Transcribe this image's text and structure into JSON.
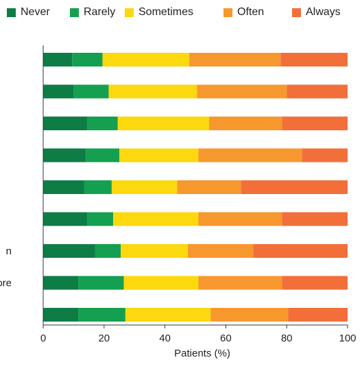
{
  "chart_data": {
    "type": "bar",
    "orientation": "horizontal",
    "stacked": true,
    "title": "",
    "xlabel": "Patients (%)",
    "ylabel": "",
    "xlim": [
      0,
      100
    ],
    "xticks": [
      "0",
      "20",
      "40",
      "60",
      "80",
      "100"
    ],
    "grid": false,
    "legend_position": "top",
    "categories": [
      "",
      "",
      "",
      "",
      "",
      "",
      "n",
      "ore",
      ""
    ],
    "series": [
      {
        "name": "Never",
        "color": "#0e7d45",
        "values": [
          9.5,
          10,
          14.5,
          14,
          13.5,
          14.5,
          17,
          11.5,
          11.5
        ]
      },
      {
        "name": "Rarely",
        "color": "#14a050",
        "values": [
          10,
          11.5,
          10,
          11,
          9,
          8.5,
          8.5,
          15,
          15.5
        ]
      },
      {
        "name": "Sometimes",
        "color": "#fcd80f",
        "values": [
          28.5,
          29,
          30,
          26,
          21.5,
          28,
          22,
          24.5,
          28
        ]
      },
      {
        "name": "Often",
        "color": "#f7982f",
        "values": [
          30,
          29.5,
          24,
          34,
          21,
          27.5,
          21.5,
          27.5,
          25.5
        ]
      },
      {
        "name": "Always",
        "color": "#f26f3a",
        "values": [
          22,
          20,
          21.5,
          15,
          35,
          21.5,
          31,
          21.5,
          19.5
        ]
      }
    ]
  }
}
